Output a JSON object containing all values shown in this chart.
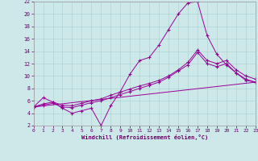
{
  "xlabel": "Windchill (Refroidissement éolien,°C)",
  "xlim": [
    0,
    23
  ],
  "ylim": [
    2,
    22
  ],
  "xticks": [
    0,
    1,
    2,
    3,
    4,
    5,
    6,
    7,
    8,
    9,
    10,
    11,
    12,
    13,
    14,
    15,
    16,
    17,
    18,
    19,
    20,
    21,
    22,
    23
  ],
  "yticks": [
    2,
    4,
    6,
    8,
    10,
    12,
    14,
    16,
    18,
    20,
    22
  ],
  "bg_color": "#cde8e8",
  "grid_color": "#b0d4d4",
  "line_color": "#990099",
  "line1_x": [
    0,
    1,
    2,
    3,
    4,
    5,
    6,
    7,
    8,
    9,
    10,
    11,
    12,
    13,
    14,
    15,
    16,
    17,
    18,
    19,
    20,
    21,
    22,
    23
  ],
  "line1_y": [
    5.0,
    6.5,
    5.8,
    4.8,
    4.0,
    4.4,
    4.8,
    2.0,
    5.2,
    7.5,
    10.3,
    12.5,
    13.0,
    15.0,
    17.5,
    20.0,
    21.8,
    22.0,
    16.5,
    13.5,
    11.8,
    10.5,
    9.3,
    9.0
  ],
  "line2_x": [
    0,
    1,
    2,
    3,
    4,
    5,
    6,
    7,
    8,
    9,
    10,
    11,
    12,
    13,
    14,
    15,
    16,
    17,
    18,
    19,
    20,
    21,
    22,
    23
  ],
  "line2_y": [
    5.0,
    5.3,
    5.6,
    5.0,
    4.9,
    5.3,
    5.7,
    6.0,
    6.5,
    7.0,
    7.5,
    8.0,
    8.5,
    9.0,
    9.8,
    10.8,
    11.8,
    13.8,
    12.0,
    11.5,
    12.0,
    10.5,
    9.5,
    9.0
  ],
  "line3_x": [
    0,
    1,
    2,
    3,
    4,
    5,
    6,
    7,
    8,
    9,
    10,
    11,
    12,
    13,
    14,
    15,
    16,
    17,
    18,
    19,
    20,
    21,
    22,
    23
  ],
  "line3_y": [
    5.0,
    5.5,
    5.8,
    5.3,
    5.2,
    5.6,
    6.0,
    6.3,
    6.9,
    7.4,
    7.9,
    8.4,
    8.8,
    9.3,
    10.0,
    11.0,
    12.2,
    14.2,
    12.5,
    12.0,
    12.5,
    11.0,
    10.0,
    9.5
  ],
  "line4_x": [
    0,
    23
  ],
  "line4_y": [
    5.0,
    9.0
  ],
  "figsize": [
    3.2,
    2.0
  ],
  "dpi": 100
}
